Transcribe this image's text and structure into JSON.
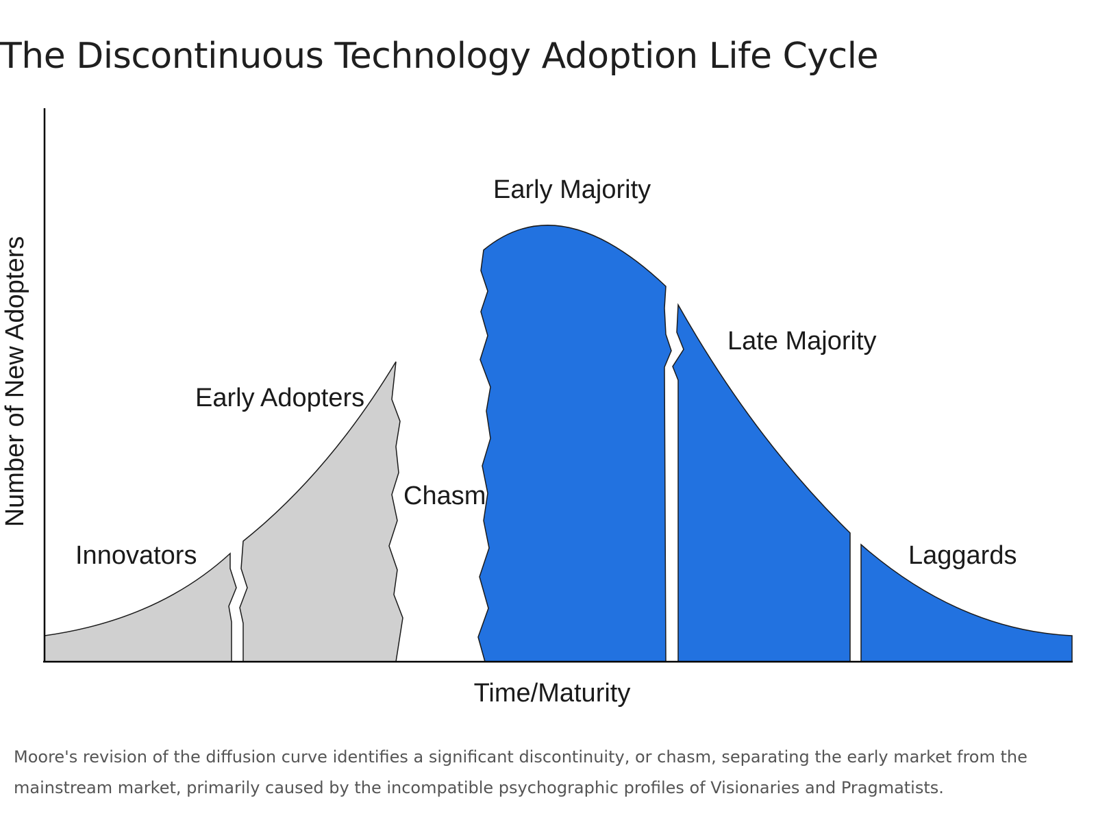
{
  "title": "The Discontinuous Technology Adoption Life Cycle",
  "diagram": {
    "segments": [
      {
        "id": "innovators",
        "label": "Innovators",
        "fill": "#d0d0d0"
      },
      {
        "id": "early-adopters",
        "label": "Early Adopters",
        "fill": "#d0d0d0"
      },
      {
        "id": "chasm",
        "label": "Chasm",
        "fill": "#ffffff"
      },
      {
        "id": "early-majority",
        "label": "Early Majority",
        "fill": "#2272e0"
      },
      {
        "id": "late-majority",
        "label": "Late Majority",
        "fill": "#2272e0"
      },
      {
        "id": "laggards",
        "label": "Laggards",
        "fill": "#2272e0"
      }
    ],
    "x_axis_label": "Time/Maturity",
    "y_axis_label": "Number of New Adopters",
    "colors": {
      "early_market": "#d0d0d0",
      "mainstream_market": "#2272e0",
      "axis": "#000000"
    }
  },
  "caption": "Moore's revision of the diffusion curve identifies a significant discontinuity, or chasm, separating the early market from the mainstream market, primarily caused by the incompatible psychographic profiles of Visionaries and Pragmatists."
}
